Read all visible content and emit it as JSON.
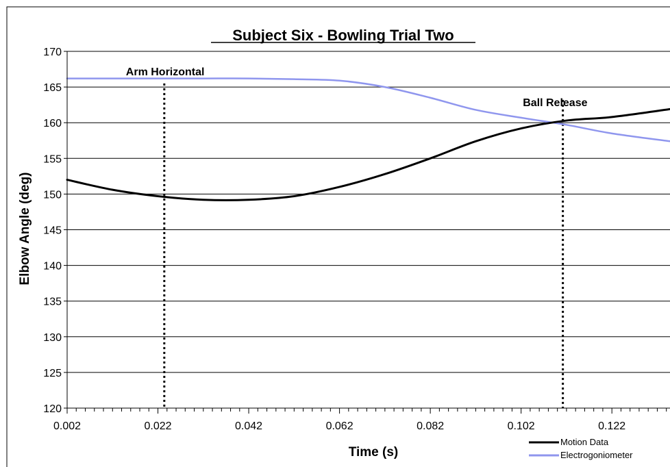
{
  "chart_data": {
    "type": "line",
    "title": "Subject Six - Bowling Trial Two",
    "xlabel": "Time (s)",
    "ylabel": "Elbow Angle (deg)",
    "xlim": [
      0.002,
      0.1348
    ],
    "ylim": [
      120,
      170
    ],
    "x_ticks": [
      "0.002",
      "0.022",
      "0.042",
      "0.062",
      "0.082",
      "0.102",
      "0.122"
    ],
    "y_ticks": [
      "120",
      "125",
      "130",
      "135",
      "140",
      "145",
      "150",
      "155",
      "160",
      "165",
      "170"
    ],
    "grid": "horizontal",
    "legend_position": "bottom-right",
    "colors": {
      "motion": "#000000",
      "electro": "#8f96ee",
      "grid": "#000000"
    },
    "series": [
      {
        "name": "Motion Data",
        "color": "#000000",
        "x": [
          0.002,
          0.012,
          0.022,
          0.032,
          0.042,
          0.052,
          0.062,
          0.072,
          0.082,
          0.092,
          0.102,
          0.112,
          0.122,
          0.1348
        ],
        "values": [
          152.0,
          150.6,
          149.7,
          149.2,
          149.2,
          149.7,
          151.0,
          152.8,
          155.0,
          157.4,
          159.2,
          160.3,
          160.8,
          161.9
        ]
      },
      {
        "name": "Electrogoniometer",
        "color": "#8f96ee",
        "x": [
          0.002,
          0.012,
          0.022,
          0.032,
          0.042,
          0.052,
          0.062,
          0.072,
          0.082,
          0.092,
          0.102,
          0.112,
          0.122,
          0.1348
        ],
        "values": [
          166.2,
          166.2,
          166.2,
          166.2,
          166.2,
          166.1,
          165.9,
          165.0,
          163.5,
          161.8,
          160.7,
          159.7,
          158.5,
          157.4
        ]
      }
    ],
    "annotations": [
      {
        "label": "Arm Horizontal",
        "x": 0.0234,
        "text_x": 0.0236,
        "text_y": 167.2
      },
      {
        "label": "Ball Release",
        "x": 0.1112,
        "text_x": 0.1095,
        "text_y": 162.9
      }
    ]
  }
}
